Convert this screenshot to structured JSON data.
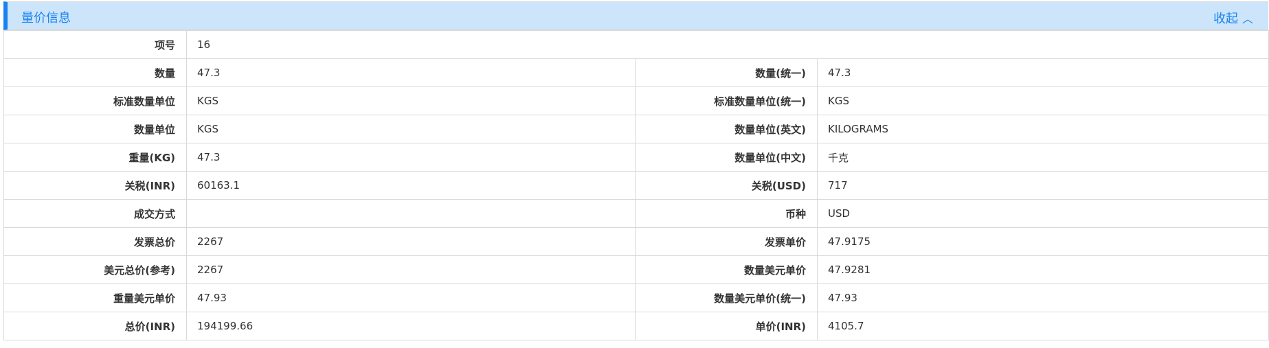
{
  "section": {
    "title": "量价信息",
    "toggle_label": "收起",
    "toggle_icon": "chevron-up-icon",
    "accent": "#1a82f0",
    "header_bg": "#cce5fb"
  },
  "item_no": {
    "label": "项号",
    "value": "16"
  },
  "rows": [
    {
      "l1": "数量",
      "v1": "47.3",
      "l2": "数量(统一)",
      "v2": "47.3"
    },
    {
      "l1": "标准数量单位",
      "v1": "KGS",
      "l2": "标准数量单位(统一)",
      "v2": "KGS"
    },
    {
      "l1": "数量单位",
      "v1": "KGS",
      "l2": "数量单位(英文)",
      "v2": "KILOGRAMS"
    },
    {
      "l1": "重量(KG)",
      "v1": "47.3",
      "l2": "数量单位(中文)",
      "v2": "千克"
    },
    {
      "l1": "关税(INR)",
      "v1": "60163.1",
      "l2": "关税(USD)",
      "v2": "717"
    },
    {
      "l1": "成交方式",
      "v1": "",
      "l2": "币种",
      "v2": "USD"
    },
    {
      "l1": "发票总价",
      "v1": "2267",
      "l2": "发票单价",
      "v2": "47.9175"
    },
    {
      "l1": "美元总价(参考)",
      "v1": "2267",
      "l2": "数量美元单价",
      "v2": "47.9281"
    },
    {
      "l1": "重量美元单价",
      "v1": "47.93",
      "l2": "数量美元单价(统一)",
      "v2": "47.93"
    },
    {
      "l1": "总价(INR)",
      "v1": "194199.66",
      "l2": "单价(INR)",
      "v2": "4105.7"
    }
  ]
}
